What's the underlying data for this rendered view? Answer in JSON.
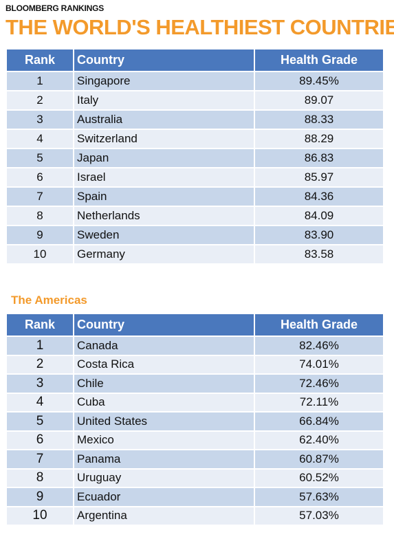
{
  "header": {
    "kicker": "BLOOMBERG RANKINGS",
    "title": "THE WORLD'S HEALTHIEST COUNTRIES"
  },
  "colors": {
    "title_orange": "#f39a2b",
    "header_blue": "#4a78bd",
    "row_dark": "#c7d6ea",
    "row_light": "#e9eef6"
  },
  "top_table": {
    "columns": [
      "Rank",
      "Country",
      "Health Grade"
    ],
    "rows": [
      {
        "rank": "1",
        "country": "Singapore",
        "grade": "89.45%"
      },
      {
        "rank": "2",
        "country": "Italy",
        "grade": "89.07"
      },
      {
        "rank": "3",
        "country": "Australia",
        "grade": "88.33"
      },
      {
        "rank": "4",
        "country": "Switzerland",
        "grade": "88.29"
      },
      {
        "rank": "5",
        "country": "Japan",
        "grade": "86.83"
      },
      {
        "rank": "6",
        "country": "Israel",
        "grade": "85.97"
      },
      {
        "rank": "7",
        "country": "Spain",
        "grade": "84.36"
      },
      {
        "rank": "8",
        "country": "Netherlands",
        "grade": "84.09"
      },
      {
        "rank": "9",
        "country": "Sweden",
        "grade": "83.90"
      },
      {
        "rank": "10",
        "country": "Germany",
        "grade": "83.58"
      }
    ]
  },
  "americas": {
    "title": "The Americas",
    "columns": [
      "Rank",
      "Country",
      "Health Grade"
    ],
    "rows": [
      {
        "rank": "1",
        "country": "Canada",
        "grade": "82.46%"
      },
      {
        "rank": "2",
        "country": "Costa Rica",
        "grade": "74.01%"
      },
      {
        "rank": "3",
        "country": "Chile",
        "grade": "72.46%"
      },
      {
        "rank": "4",
        "country": "Cuba",
        "grade": "72.11%"
      },
      {
        "rank": "5",
        "country": "United States",
        "grade": "66.84%"
      },
      {
        "rank": "6",
        "country": "Mexico",
        "grade": "62.40%"
      },
      {
        "rank": "7",
        "country": "Panama",
        "grade": "60.87%"
      },
      {
        "rank": "8",
        "country": "Uruguay",
        "grade": "60.52%"
      },
      {
        "rank": "9",
        "country": "Ecuador",
        "grade": "57.63%"
      },
      {
        "rank": "10",
        "country": "Argentina",
        "grade": "57.03%"
      }
    ]
  }
}
